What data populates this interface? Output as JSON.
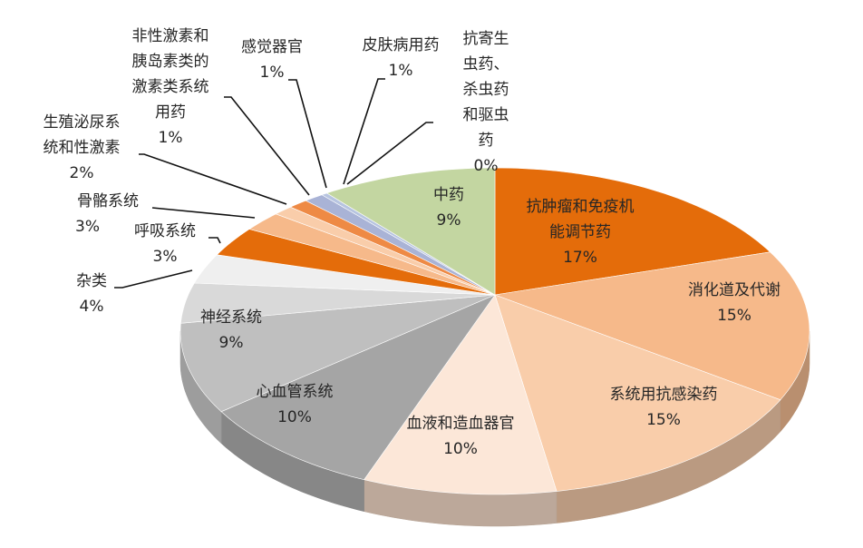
{
  "chart_data": {
    "type": "pie",
    "style": "3d",
    "title": "",
    "legend": "none",
    "slices": [
      {
        "name": "抗肿瘤和免疫机能调节药",
        "value": 17,
        "label": "17%",
        "color": "#E46C0A",
        "label_lines": [
          "抗肿瘤和免疫机",
          "能调节药"
        ]
      },
      {
        "name": "消化道及代谢",
        "value": 15,
        "label": "15%",
        "color": "#F6B98A",
        "label_lines": [
          "消化道及代谢"
        ]
      },
      {
        "name": "系统用抗感染药",
        "value": 15,
        "label": "15%",
        "color": "#F9CDAA",
        "label_lines": [
          "系统用抗感染药"
        ]
      },
      {
        "name": "血液和造血器官",
        "value": 10,
        "label": "10%",
        "color": "#FCE7D8",
        "label_lines": [
          "血液和造血器官"
        ]
      },
      {
        "name": "心血管系统",
        "value": 10,
        "label": "10%",
        "color": "#A5A5A5",
        "label_lines": [
          "心血管系统"
        ]
      },
      {
        "name": "神经系统",
        "value": 9,
        "label": "9%",
        "color": "#BFBFBF",
        "label_lines": [
          "神经系统"
        ]
      },
      {
        "name": "杂类",
        "value": 4,
        "label": "4%",
        "color": "#D9D9D9",
        "label_lines": [
          "杂类"
        ]
      },
      {
        "name": "呼吸系统",
        "value": 3,
        "label": "3%",
        "color": "#EFEFEF",
        "label_lines": [
          "呼吸系统"
        ]
      },
      {
        "name": "骨骼系统",
        "value": 3,
        "label": "3%",
        "color": "#E46C0A",
        "label_lines": [
          "骨骼系统"
        ]
      },
      {
        "name": "生殖泌尿系统和性激素",
        "value": 2,
        "label": "2%",
        "color": "#F6B98A",
        "label_lines": [
          "生殖泌尿系",
          "统和性激素"
        ]
      },
      {
        "name": "非性激素和胰岛素类的激素类系统用药",
        "value": 1,
        "label": "1%",
        "color": "#F9CDAA",
        "label_lines": [
          "非性激素和",
          "胰岛素类的",
          "激素类系统",
          "用药"
        ]
      },
      {
        "name": "感觉器官",
        "value": 1,
        "label": "1%",
        "color": "#EE8A45",
        "label_lines": [
          "感觉器官"
        ]
      },
      {
        "name": "皮肤病用药",
        "value": 1,
        "label": "1%",
        "color": "#A9B3D6",
        "label_lines": [
          "皮肤病用药"
        ]
      },
      {
        "name": "抗寄生虫药、杀虫药和驱虫药",
        "value": 0.3,
        "label": "0%",
        "color": "#B7C4E0",
        "label_lines": [
          "抗寄生",
          "虫药、",
          "杀虫药",
          "和驱虫",
          "药"
        ]
      },
      {
        "name": "中药",
        "value": 9,
        "label": "9%",
        "color": "#C3D6A1",
        "label_lines": [
          "中药"
        ]
      }
    ]
  }
}
